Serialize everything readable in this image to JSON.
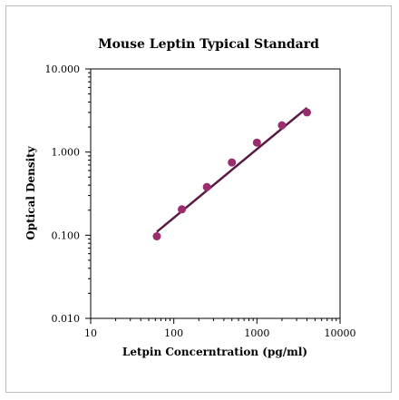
{
  "chart_data": {
    "type": "scatter",
    "title": "Mouse Leptin Typical Standard",
    "xlabel": "Letpin Concerntration (pg/ml)",
    "ylabel": "Optical Density",
    "x_scale": "log",
    "y_scale": "log",
    "xlim": [
      10,
      10000
    ],
    "ylim": [
      0.01,
      10
    ],
    "x_ticks": [
      "10",
      "100",
      "1000",
      "10000"
    ],
    "y_ticks": [
      "10.000",
      "1.000",
      "0.100",
      "0.010"
    ],
    "grid": false,
    "legend": "none",
    "points": {
      "x": [
        62.5,
        125,
        250,
        500,
        1000,
        2000,
        4000
      ],
      "y": [
        0.097,
        0.205,
        0.38,
        0.75,
        1.3,
        2.1,
        3.0
      ]
    },
    "fit_line": {
      "x": [
        62.5,
        4000
      ],
      "y": [
        0.11,
        3.4
      ]
    },
    "colors": {
      "marker": "#9b2d6e",
      "fit_line": "#5a1a44",
      "axis": "#000000"
    }
  }
}
